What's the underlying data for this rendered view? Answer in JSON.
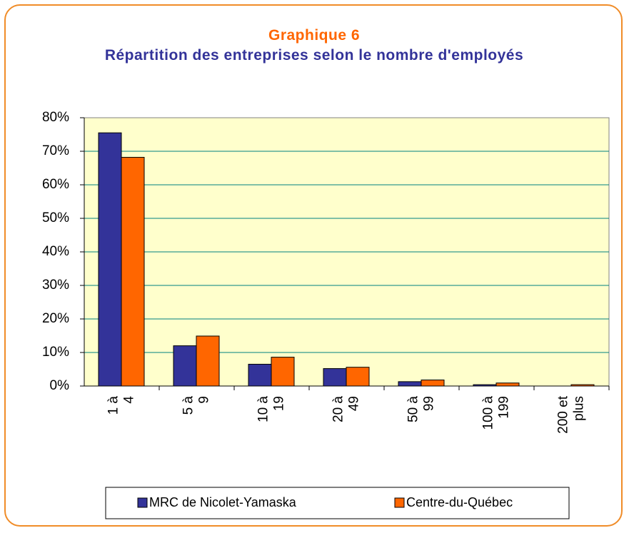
{
  "chart_data": {
    "type": "bar",
    "title": "Graphique 6",
    "subtitle": "Répartition des entreprises selon le nombre d'employés",
    "categories": [
      "1 à 4",
      "5 à 9",
      "10 à 19",
      "20 à 49",
      "50 à 99",
      "100 à 199",
      "200 et plus"
    ],
    "series": [
      {
        "name": "MRC de Nicolet-Yamaska",
        "color": "#333399",
        "values": [
          75.5,
          12.0,
          6.5,
          5.2,
          1.3,
          0.4,
          0
        ]
      },
      {
        "name": "Centre-du-Québec",
        "color": "#ff6600",
        "values": [
          68.2,
          14.9,
          8.6,
          5.6,
          1.8,
          0.9,
          0.4
        ]
      }
    ],
    "ylim": [
      0,
      80
    ],
    "yticks": [
      {
        "value": 0,
        "label": "0%"
      },
      {
        "value": 10,
        "label": "10%"
      },
      {
        "value": 20,
        "label": "20%"
      },
      {
        "value": 30,
        "label": "30%"
      },
      {
        "value": 40,
        "label": "40%"
      },
      {
        "value": 50,
        "label": "50%"
      },
      {
        "value": 60,
        "label": "60%"
      },
      {
        "value": 70,
        "label": "70%"
      },
      {
        "value": 80,
        "label": "80%"
      }
    ],
    "grid": true,
    "legend": "bottom"
  }
}
